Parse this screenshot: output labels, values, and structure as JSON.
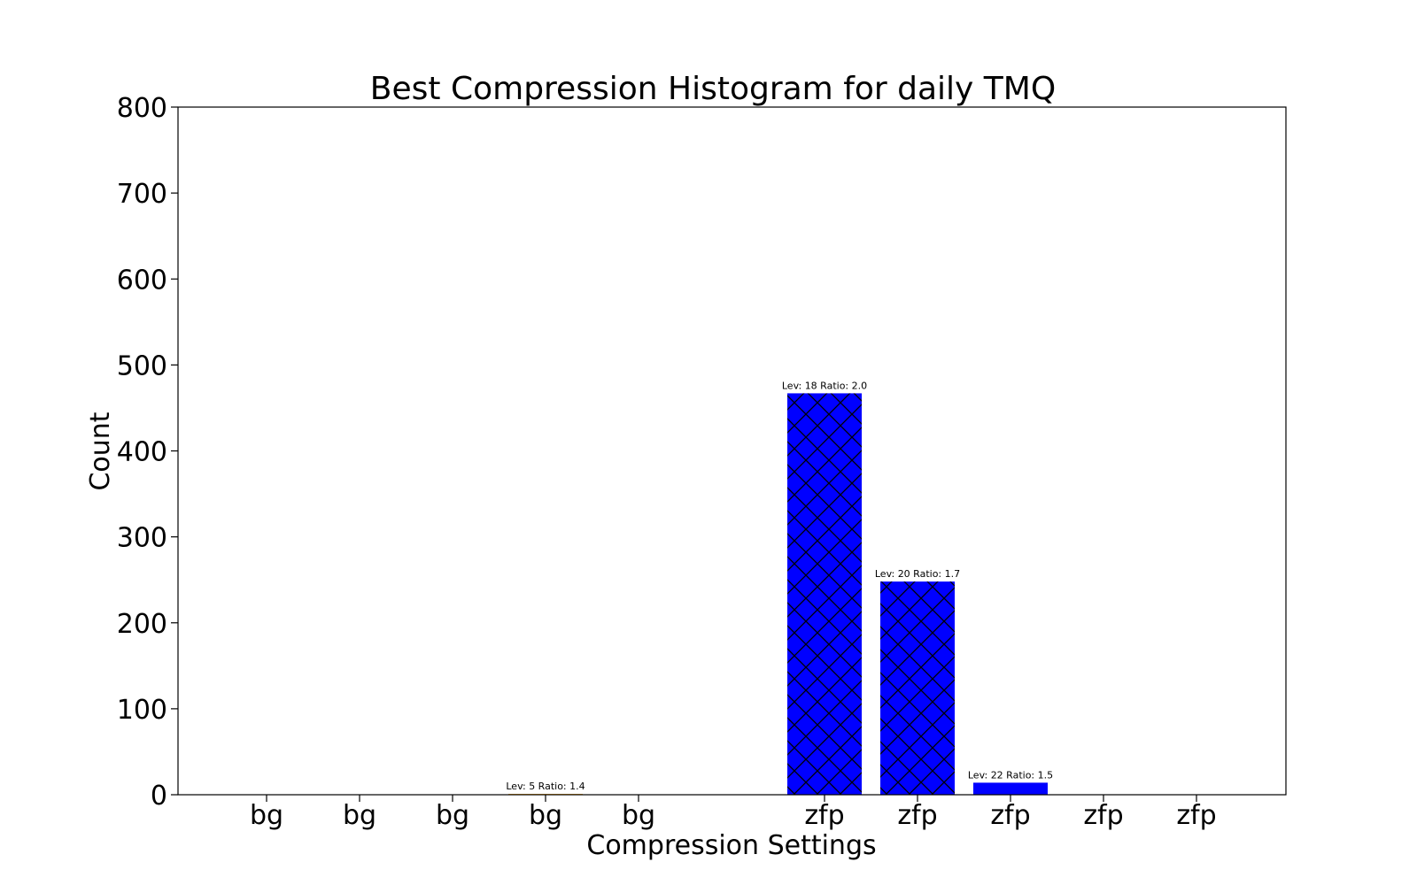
{
  "chart_data": {
    "type": "bar",
    "title": "Best Compression Histogram for daily TMQ",
    "xlabel": "Compression Settings",
    "ylabel": "Count",
    "ylim": [
      0,
      800
    ],
    "yticks": [
      "0",
      "100",
      "200",
      "300",
      "400",
      "500",
      "600",
      "700",
      "800"
    ],
    "categories": [
      "bg",
      "bg",
      "bg",
      "bg",
      "bg",
      "zfp",
      "zfp",
      "zfp",
      "zfp",
      "zfp"
    ],
    "values": [
      0,
      0,
      0,
      1,
      0,
      467,
      248,
      14,
      0,
      0
    ],
    "bar_labels": [
      "",
      "",
      "",
      "Lev: 5 Ratio: 1.4",
      "",
      "Lev: 18 Ratio: 2.0",
      "Lev: 20 Ratio: 1.7",
      "Lev: 22 Ratio: 1.5",
      "",
      ""
    ],
    "bar_colors": [
      "#f5a623",
      "#f5a623",
      "#f5a623",
      "#f5a623",
      "#f5a623",
      "#0000ff",
      "#0000ff",
      "#0000ff",
      "#0000ff",
      "#0000ff"
    ],
    "hatch": [
      false,
      false,
      false,
      false,
      false,
      true,
      true,
      false,
      false,
      false
    ],
    "grid": false
  }
}
